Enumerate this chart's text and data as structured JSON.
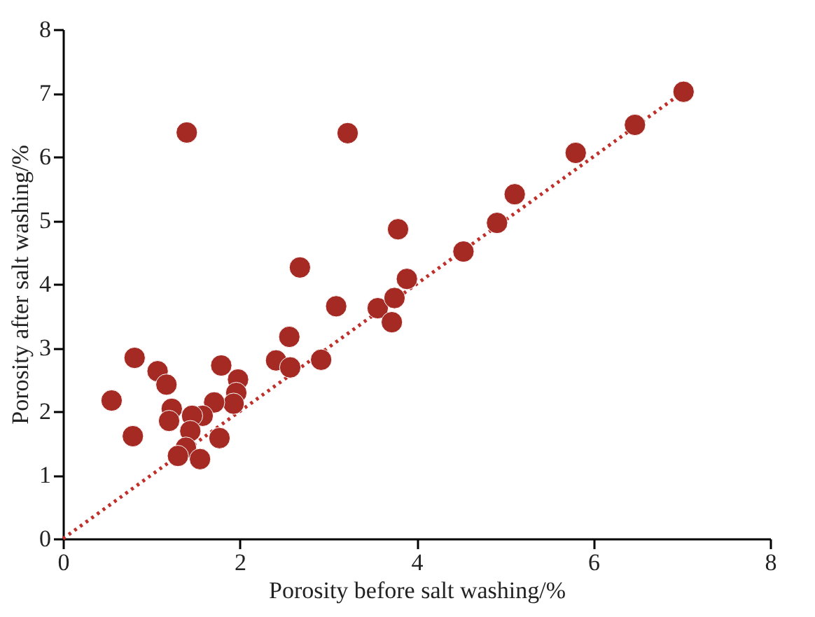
{
  "chart_data": {
    "type": "scatter",
    "xlabel": "Porosity before salt washing/%",
    "ylabel": "Porosity after salt washing/%",
    "xlim": [
      0,
      8
    ],
    "ylim": [
      0,
      8
    ],
    "xticks": [
      0,
      2,
      4,
      6,
      8
    ],
    "yticks": [
      0,
      1,
      2,
      3,
      4,
      5,
      6,
      7,
      8
    ],
    "series": [
      {
        "color": "#a52a23",
        "marker": "circle",
        "x": [
          1.4,
          3.22,
          7.02,
          6.47,
          5.8,
          5.11,
          4.91,
          4.53,
          3.79,
          3.89,
          2.68,
          3.09,
          3.56,
          3.75,
          3.72,
          2.56,
          2.41,
          2.57,
          2.92,
          0.81,
          1.07,
          1.17,
          0.55,
          0.79,
          1.23,
          1.2,
          1.79,
          1.98,
          1.96,
          1.93,
          1.71,
          1.58,
          1.46,
          1.44,
          1.39,
          1.3,
          1.55,
          1.77
        ],
        "values": [
          6.38,
          6.37,
          7.02,
          6.5,
          6.06,
          5.41,
          4.96,
          4.51,
          4.86,
          4.08,
          4.26,
          3.65,
          3.62,
          3.78,
          3.4,
          3.17,
          2.8,
          2.69,
          2.81,
          2.84,
          2.63,
          2.42,
          2.17,
          1.61,
          2.04,
          1.85,
          2.72,
          2.5,
          2.29,
          2.12,
          2.14,
          1.93,
          1.93,
          1.69,
          1.43,
          1.3,
          1.25,
          1.58
        ]
      },
      {
        "type": "line",
        "color": "#c0302a",
        "line_style": "dotted",
        "marker": "none",
        "x": [
          0,
          7
        ],
        "values": [
          0,
          7
        ]
      }
    ]
  }
}
